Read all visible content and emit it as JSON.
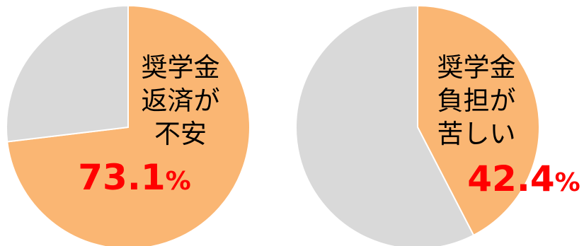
{
  "chart_data": [
    {
      "type": "pie",
      "slices": [
        {
          "value": 73.1,
          "color": "#FAB673"
        },
        {
          "value": 26.9,
          "color": "#D9D9D9"
        }
      ],
      "label_lines": [
        "奨学金",
        "返済が",
        "不安"
      ],
      "value_number": "73.1",
      "value_unit": "%",
      "value_color": "#FF0000"
    },
    {
      "type": "pie",
      "slices": [
        {
          "value": 42.4,
          "color": "#FAB673"
        },
        {
          "value": 57.6,
          "color": "#D9D9D9"
        }
      ],
      "label_lines": [
        "奨学金",
        "負担が",
        "苦しい"
      ],
      "value_number": "42.4",
      "value_unit": "%",
      "value_color": "#FF0000"
    }
  ]
}
